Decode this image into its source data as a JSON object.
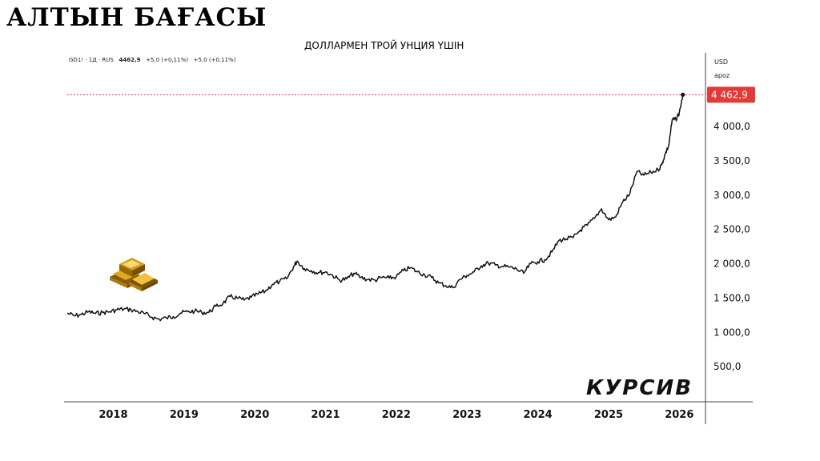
{
  "title": "АЛТЫН БАҒАСЫ",
  "subtitle": "ДОЛЛАРМЕН ТРОЙ УНЦИЯ ҮШІН",
  "ticker": {
    "symbol": "GD1! · 1Д · RUS",
    "price": "4462,9",
    "change1": "+5,0 (+0,11%)",
    "change2": "+5,0 (+0,11%)"
  },
  "axis": {
    "currency": "USD",
    "mode": "арoz"
  },
  "brand": "КУРСИВ",
  "icons": {
    "gold-bars": "gold-bars-icon"
  },
  "colors": {
    "line": "#111111",
    "last_price": "#e53935",
    "axis": "#555555"
  },
  "chart_data": {
    "type": "line",
    "ylim": [
      0,
      4700
    ],
    "xlim": [
      2017.35,
      2026.2
    ],
    "y_ticks": [
      {
        "v": 500,
        "label": "500,0"
      },
      {
        "v": 1000,
        "label": "1 000,0"
      },
      {
        "v": 1500,
        "label": "1 500,0"
      },
      {
        "v": 2000,
        "label": "2 000,0"
      },
      {
        "v": 2500,
        "label": "2 500,0"
      },
      {
        "v": 3000,
        "label": "3 000,0"
      },
      {
        "v": 3500,
        "label": "3 500,0"
      },
      {
        "v": 4000,
        "label": "4 000,0"
      }
    ],
    "x_ticks": [
      {
        "v": 2018,
        "label": "2018"
      },
      {
        "v": 2019,
        "label": "2019"
      },
      {
        "v": 2020,
        "label": "2020"
      },
      {
        "v": 2021,
        "label": "2021"
      },
      {
        "v": 2022,
        "label": "2022"
      },
      {
        "v": 2023,
        "label": "2023"
      },
      {
        "v": 2024,
        "label": "2024"
      },
      {
        "v": 2025,
        "label": "2025"
      },
      {
        "v": 2026,
        "label": "2026"
      }
    ],
    "last_value": 4462.9,
    "last_label": "4 462,9",
    "series": [
      {
        "x": [
          2017.35,
          2017.45,
          2017.55,
          2017.65,
          2017.75,
          2017.85,
          2017.95,
          2018.05,
          2018.15,
          2018.25,
          2018.35,
          2018.45,
          2018.55,
          2018.65,
          2018.75,
          2018.85,
          2018.95,
          2019.05,
          2019.15,
          2019.25,
          2019.35,
          2019.45,
          2019.55,
          2019.65,
          2019.75,
          2019.85,
          2019.95,
          2020.05,
          2020.15,
          2020.25,
          2020.35,
          2020.45,
          2020.55,
          2020.6,
          2020.7,
          2020.8,
          2020.9,
          2021.0,
          2021.1,
          2021.2,
          2021.3,
          2021.4,
          2021.5,
          2021.6,
          2021.7,
          2021.8,
          2021.9,
          2022.0,
          2022.1,
          2022.2,
          2022.3,
          2022.4,
          2022.5,
          2022.6,
          2022.7,
          2022.8,
          2022.9,
          2023.0,
          2023.1,
          2023.2,
          2023.3,
          2023.4,
          2023.5,
          2023.6,
          2023.7,
          2023.8,
          2023.9,
          2024.0,
          2024.1,
          2024.2,
          2024.3,
          2024.4,
          2024.5,
          2024.6,
          2024.7,
          2024.8,
          2024.9,
          2025.0,
          2025.1,
          2025.2,
          2025.3,
          2025.4,
          2025.5,
          2025.6,
          2025.7,
          2025.75,
          2025.8,
          2025.85,
          2025.9,
          2025.95,
          2026.0,
          2026.05
        ],
        "values": [
          1280,
          1240,
          1260,
          1300,
          1275,
          1290,
          1300,
          1330,
          1340,
          1330,
          1300,
          1270,
          1220,
          1190,
          1210,
          1230,
          1280,
          1300,
          1310,
          1290,
          1290,
          1380,
          1420,
          1520,
          1500,
          1470,
          1510,
          1560,
          1600,
          1700,
          1740,
          1780,
          1960,
          2040,
          1930,
          1900,
          1870,
          1880,
          1830,
          1760,
          1780,
          1860,
          1800,
          1770,
          1760,
          1800,
          1790,
          1810,
          1900,
          1940,
          1880,
          1840,
          1800,
          1720,
          1680,
          1650,
          1770,
          1830,
          1880,
          1970,
          2010,
          1980,
          1960,
          1950,
          1920,
          1860,
          2000,
          2030,
          2060,
          2170,
          2340,
          2360,
          2380,
          2490,
          2560,
          2660,
          2800,
          2640,
          2680,
          2900,
          3020,
          3340,
          3290,
          3330,
          3370,
          3440,
          3600,
          3720,
          4100,
          4100,
          4200,
          4462.9
        ]
      }
    ]
  }
}
